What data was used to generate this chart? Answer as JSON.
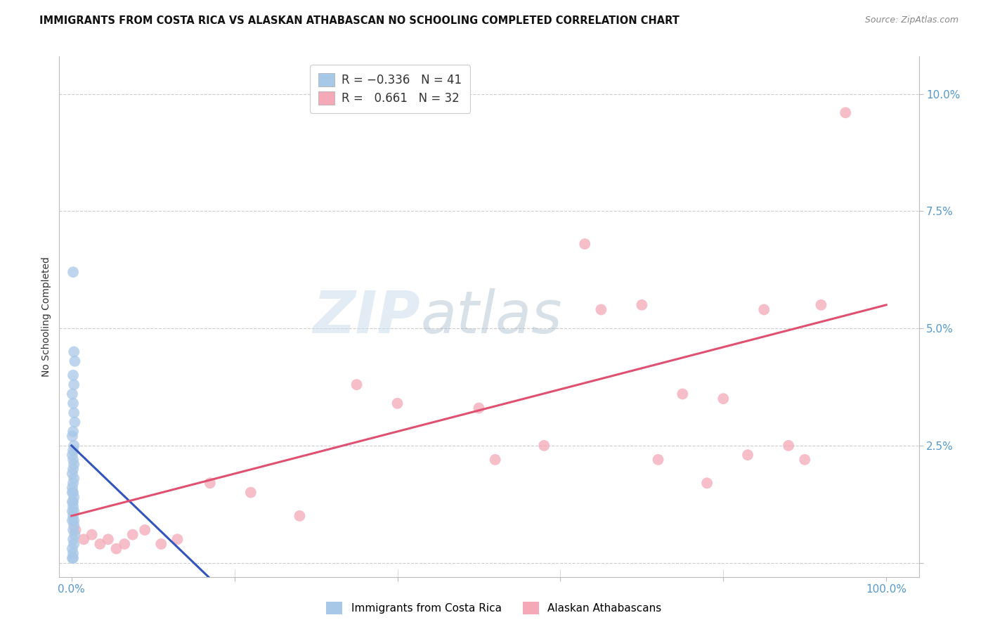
{
  "title": "IMMIGRANTS FROM COSTA RICA VS ALASKAN ATHABASCAN NO SCHOOLING COMPLETED CORRELATION CHART",
  "source": "Source: ZipAtlas.com",
  "ylabel": "No Schooling Completed",
  "right_yticks": [
    0.0,
    0.025,
    0.05,
    0.075,
    0.1
  ],
  "right_yticklabels": [
    "",
    "2.5%",
    "5.0%",
    "7.5%",
    "10.0%"
  ],
  "xlim": [
    -0.015,
    1.04
  ],
  "ylim": [
    -0.003,
    0.108
  ],
  "legend_r1": "R = -0.336",
  "legend_n1": "N = 41",
  "legend_r2": "R =  0.661",
  "legend_n2": "N = 32",
  "blue_color": "#a8c8e8",
  "pink_color": "#f4a8b8",
  "blue_line_color": "#3355bb",
  "pink_line_color": "#e05070",
  "background_color": "#ffffff",
  "blue_x": [
    0.002,
    0.003,
    0.004,
    0.002,
    0.003,
    0.001,
    0.002,
    0.003,
    0.004,
    0.002,
    0.001,
    0.003,
    0.002,
    0.001,
    0.002,
    0.003,
    0.002,
    0.001,
    0.003,
    0.002,
    0.001,
    0.002,
    0.003,
    0.001,
    0.002,
    0.003,
    0.002,
    0.001,
    0.003,
    0.002,
    0.004,
    0.002,
    0.003,
    0.001,
    0.002,
    0.001,
    0.002,
    0.001,
    0.003,
    0.002,
    0.001
  ],
  "blue_y": [
    0.062,
    0.045,
    0.043,
    0.04,
    0.038,
    0.036,
    0.034,
    0.032,
    0.03,
    0.028,
    0.027,
    0.025,
    0.024,
    0.023,
    0.022,
    0.021,
    0.02,
    0.019,
    0.018,
    0.017,
    0.016,
    0.015,
    0.014,
    0.013,
    0.012,
    0.011,
    0.01,
    0.009,
    0.008,
    0.007,
    0.006,
    0.005,
    0.004,
    0.003,
    0.002,
    0.015,
    0.013,
    0.011,
    0.009,
    0.001,
    0.001
  ],
  "pink_x": [
    0.005,
    0.015,
    0.025,
    0.035,
    0.045,
    0.055,
    0.065,
    0.075,
    0.09,
    0.11,
    0.13,
    0.17,
    0.22,
    0.28,
    0.35,
    0.4,
    0.5,
    0.52,
    0.58,
    0.63,
    0.65,
    0.7,
    0.72,
    0.75,
    0.78,
    0.8,
    0.83,
    0.85,
    0.88,
    0.9,
    0.92,
    0.95
  ],
  "pink_y": [
    0.007,
    0.005,
    0.006,
    0.004,
    0.005,
    0.003,
    0.004,
    0.006,
    0.007,
    0.004,
    0.005,
    0.017,
    0.015,
    0.01,
    0.038,
    0.034,
    0.033,
    0.022,
    0.025,
    0.068,
    0.054,
    0.055,
    0.022,
    0.036,
    0.017,
    0.035,
    0.023,
    0.054,
    0.025,
    0.022,
    0.055,
    0.096
  ],
  "blue_trend_x": [
    0.0,
    0.18
  ],
  "blue_trend_y": [
    0.025,
    -0.005
  ],
  "pink_trend_x": [
    0.0,
    1.0
  ],
  "pink_trend_y": [
    0.01,
    0.055
  ],
  "title_fontsize": 10.5,
  "axis_label_fontsize": 10,
  "tick_fontsize": 11,
  "dot_size": 130
}
